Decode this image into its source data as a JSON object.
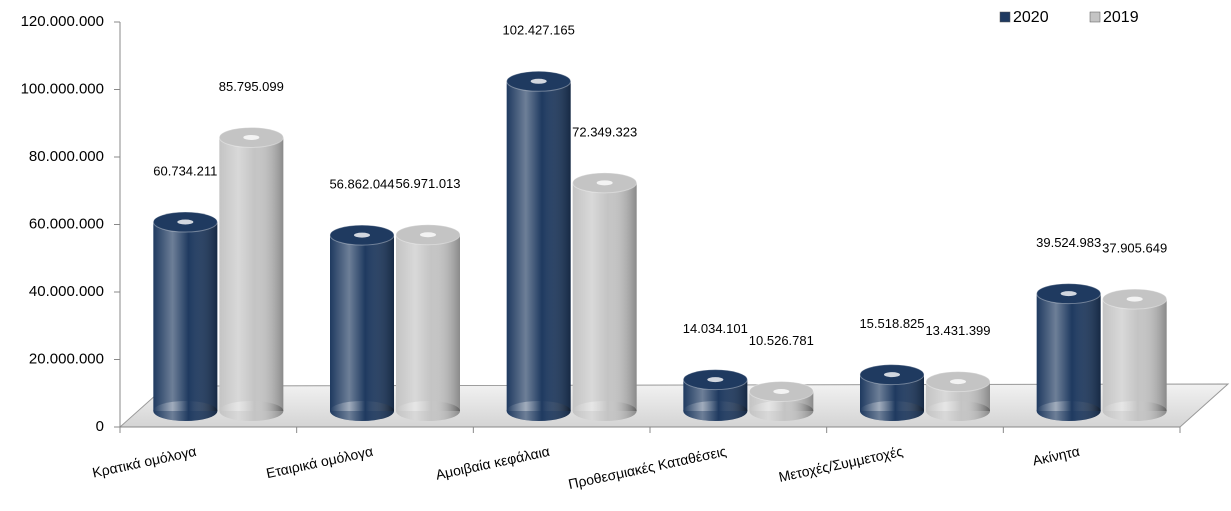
{
  "chart_data": {
    "type": "bar",
    "categories": [
      "Κρατικά ομόλογα",
      "Εταιρικά ομόλογα",
      "Αμοιβαία κεφάλαια",
      "Προθεσμιακές Καταθέσεις",
      "Μετοχές/Συμμετοχές",
      "Ακίνητα"
    ],
    "series": [
      {
        "name": "2020",
        "color": "#1f3a60",
        "values": [
          60734211,
          56862044,
          102427165,
          14034101,
          15518825,
          39524983
        ],
        "value_labels": [
          "60.734.211",
          "56.862.044",
          "102.427.165",
          "14.034.101",
          "15.518.825",
          "39.524.983"
        ]
      },
      {
        "name": "2019",
        "color": "#c4c4c4",
        "values": [
          85795099,
          56971013,
          72349323,
          10526781,
          13431399,
          37905649
        ],
        "value_labels": [
          "85.795.099",
          "56.971.013",
          "72.349.323",
          "10.526.781",
          "13.431.399",
          "37.905.649"
        ]
      }
    ],
    "ylim": [
      0,
      120000000
    ],
    "yticks": [
      0,
      {
        "value": 20000000,
        "label": "20.000.000"
      },
      {
        "value": 40000000,
        "label": "40.000.000"
      },
      {
        "value": 60000000,
        "label": "60.000.000"
      },
      {
        "value": 80000000,
        "label": "80.000.000"
      },
      {
        "value": 100000000,
        "label": "100.000.000"
      },
      {
        "value": 120000000,
        "label": "120.000.000"
      }
    ],
    "legend": "top-right"
  }
}
